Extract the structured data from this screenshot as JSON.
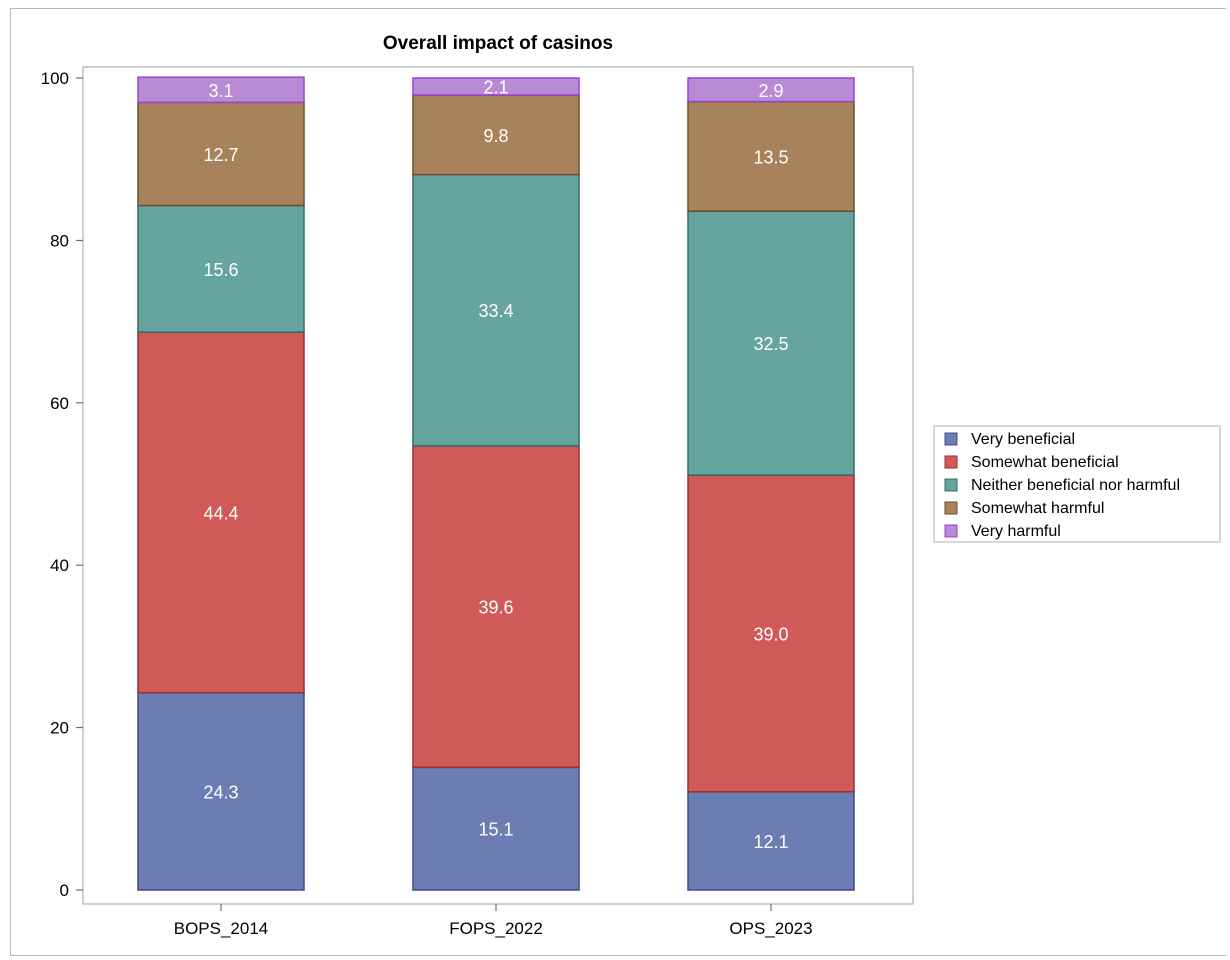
{
  "chart_data": {
    "type": "bar",
    "stacked": true,
    "title": "Overall impact of casinos",
    "xlabel": "",
    "ylabel": "",
    "ylim": [
      0,
      100
    ],
    "yticks": [
      0,
      20,
      40,
      60,
      80,
      100
    ],
    "categories": [
      "BOPS_2014",
      "FOPS_2022",
      "OPS_2023"
    ],
    "series": [
      {
        "name": "Very beneficial",
        "color": "#6b7db3",
        "edge": "#3d4f8a",
        "values": [
          24.3,
          15.1,
          12.1
        ]
      },
      {
        "name": "Somewhat beneficial",
        "color": "#d05a58",
        "edge": "#9c2f2d",
        "values": [
          44.4,
          39.6,
          39.0
        ]
      },
      {
        "name": "Neither beneficial nor harmful",
        "color": "#66a59f",
        "edge": "#2f6f68",
        "values": [
          15.6,
          33.4,
          32.5
        ]
      },
      {
        "name": "Somewhat harmful",
        "color": "#a8825a",
        "edge": "#6e4e2c",
        "values": [
          12.7,
          9.8,
          13.5
        ]
      },
      {
        "name": "Very harmful",
        "color": "#b98ad4",
        "edge": "#9b3fd6",
        "values": [
          3.1,
          2.1,
          2.9
        ]
      }
    ],
    "grid": false,
    "legend_position": "right"
  }
}
